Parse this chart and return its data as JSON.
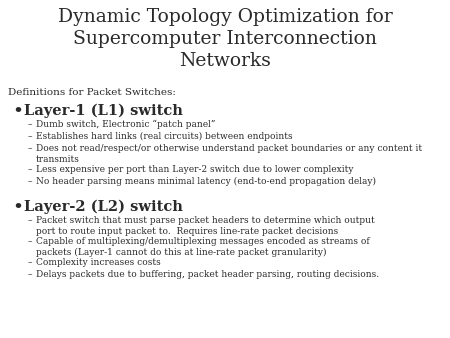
{
  "title_line1": "Dynamic Topology Optimization for",
  "title_line2": "Supercomputer Interconnection",
  "title_line3": "Networks",
  "background_color": "#ffffff",
  "text_color": "#2a2a2a",
  "subtitle": "Definitions for Packet Switches:",
  "bullet1": "Layer-1 (L1) switch",
  "bullet1_items": [
    "Dumb switch, Electronic “patch panel”",
    "Establishes hard links (real circuits) between endpoints",
    "Does not read/respect/or otherwise understand packet boundaries or any content it\ntransmits",
    "Less expensive per port than Layer-2 switch due to lower complexity",
    "No header parsing means minimal latency (end-to-end propagation delay)"
  ],
  "bullet2": "Layer-2 (L2) switch",
  "bullet2_items": [
    "Packet switch that must parse packet headers to determine which output\nport to route input packet to.  Requires line-rate packet decisions",
    "Capable of multiplexing/demultiplexing messages encoded as streams of\npackets (Layer-1 cannot do this at line-rate packet granularity)",
    "Complexity increases costs",
    "Delays packets due to buffering, packet header parsing, routing decisions."
  ],
  "title_fontsize": 13.5,
  "subtitle_fontsize": 7.5,
  "bullet_fontsize": 10.5,
  "sub_bullet_fontsize": 6.5
}
